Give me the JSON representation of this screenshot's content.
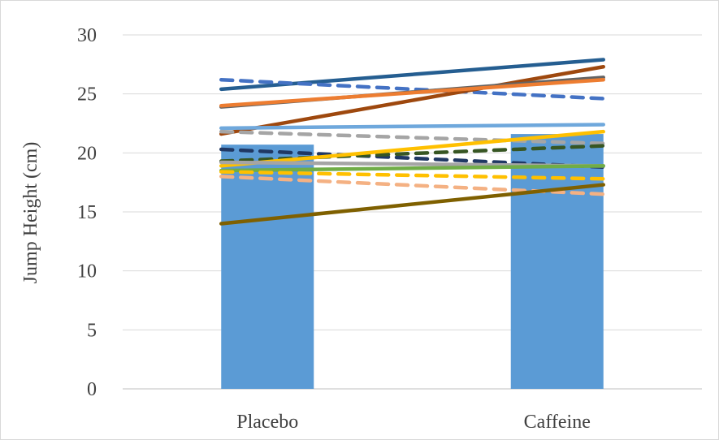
{
  "chart_data": {
    "type": "bar",
    "title": "",
    "xlabel": "",
    "ylabel": "Jump Height (cm)",
    "categories": [
      "Placebo",
      "Caffeine"
    ],
    "bar_values": [
      20.7,
      21.6
    ],
    "bar_color": "#5b9bd5",
    "ylim": [
      0,
      30
    ],
    "yticks": [
      0,
      5,
      10,
      15,
      20,
      25,
      30
    ],
    "grid": true,
    "legend": "none",
    "series": [
      {
        "values": [
          25.4,
          27.9
        ],
        "color": "#255e91",
        "dash": false
      },
      {
        "values": [
          26.2,
          24.6
        ],
        "color": "#4472c4",
        "dash": true
      },
      {
        "values": [
          21.6,
          27.3
        ],
        "color": "#9e480e",
        "dash": false
      },
      {
        "values": [
          23.9,
          26.4
        ],
        "color": "#636363",
        "dash": false
      },
      {
        "values": [
          24.0,
          26.2
        ],
        "color": "#ed7d31",
        "dash": false
      },
      {
        "values": [
          22.1,
          22.4
        ],
        "color": "#6fa8dc",
        "dash": false
      },
      {
        "values": [
          21.8,
          20.8
        ],
        "color": "#a5a5a5",
        "dash": true
      },
      {
        "values": [
          20.3,
          18.8
        ],
        "color": "#203864",
        "dash": true
      },
      {
        "values": [
          19.3,
          20.6
        ],
        "color": "#375623",
        "dash": true
      },
      {
        "values": [
          18.9,
          21.8
        ],
        "color": "#ffc000",
        "dash": false
      },
      {
        "values": [
          19.2,
          18.9
        ],
        "color": "#a5a5a5",
        "dash": false
      },
      {
        "values": [
          18.5,
          18.9
        ],
        "color": "#70ad47",
        "dash": false
      },
      {
        "values": [
          18.4,
          17.8
        ],
        "color": "#ffc000",
        "dash": true
      },
      {
        "values": [
          18.0,
          16.5
        ],
        "color": "#f4b183",
        "dash": true
      },
      {
        "values": [
          14.0,
          17.3
        ],
        "color": "#7f6000",
        "dash": false
      }
    ]
  }
}
